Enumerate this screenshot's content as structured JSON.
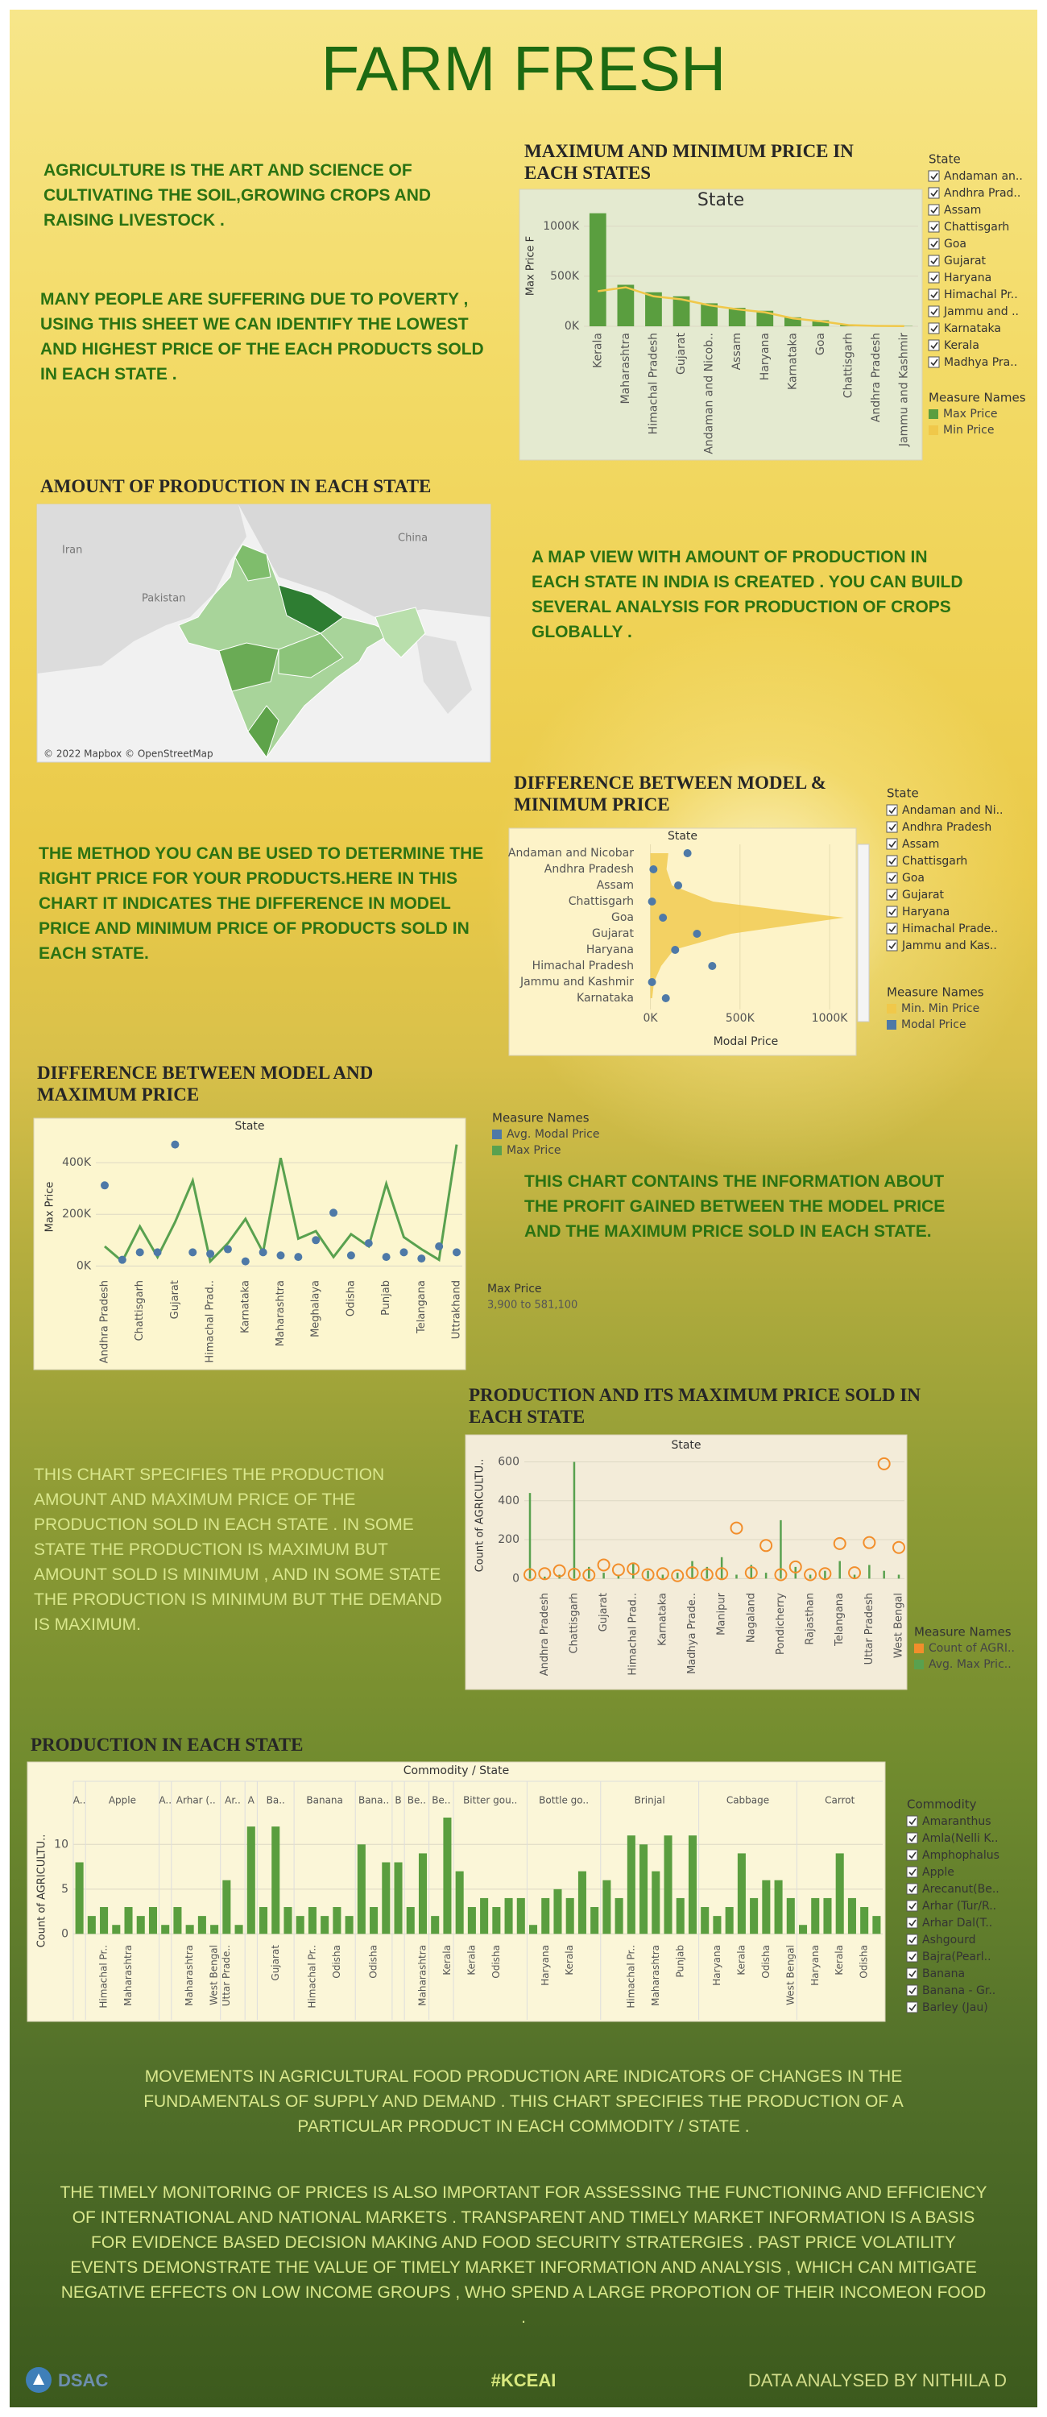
{
  "title": "FARM FRESH",
  "texts": [
    "AGRICULTURE IS THE ART AND SCIENCE OF CULTIVATING THE SOIL,GROWING CROPS AND RAISING LIVESTOCK .",
    "MANY PEOPLE ARE SUFFERING DUE TO POVERTY , USING THIS SHEET WE CAN IDENTIFY THE LOWEST AND HIGHEST PRICE OF THE EACH PRODUCTS SOLD IN EACH STATE  .",
    "A MAP VIEW WITH AMOUNT OF PRODUCTION IN EACH STATE IN INDIA IS CREATED . YOU CAN BUILD SEVERAL ANALYSIS FOR PRODUCTION OF CROPS GLOBALLY .",
    "THE METHOD YOU CAN BE USED TO DETERMINE THE RIGHT PRICE FOR YOUR PRODUCTS.HERE IN THIS CHART IT INDICATES THE DIFFERENCE IN MODEL PRICE AND MINIMUM PRICE OF PRODUCTS SOLD IN EACH STATE.",
    "THIS CHART CONTAINS THE INFORMATION ABOUT THE PROFIT GAINED BETWEEN THE MODEL PRICE AND THE MAXIMUM PRICE SOLD IN EACH STATE.",
    "THIS CHART SPECIFIES THE PRODUCTION AMOUNT AND MAXIMUM PRICE OF THE PRODUCTION SOLD IN EACH STATE . IN SOME STATE THE PRODUCTION IS MAXIMUM BUT AMOUNT SOLD IS MINIMUM , AND IN SOME STATE THE PRODUCTION IS MINIMUM BUT THE DEMAND IS MAXIMUM.",
    "MOVEMENTS IN AGRICULTURAL FOOD PRODUCTION ARE INDICATORS OF CHANGES IN THE FUNDAMENTALS OF SUPPLY AND DEMAND . THIS CHART SPECIFIES THE PRODUCTION OF A PARTICULAR PRODUCT IN EACH COMMODITY / STATE .",
    "THE TIMELY MONITORING OF PRICES IS ALSO IMPORTANT FOR ASSESSING THE FUNCTIONING AND EFFICIENCY OF INTERNATIONAL AND NATIONAL MARKETS . TRANSPARENT AND TIMELY MARKET INFORMATION IS A BASIS FOR EVIDENCE BASED DECISION MAKING AND FOOD SECURITY STRATERGIES . PAST PRICE VOLATILITY EVENTS DEMONSTRATE THE VALUE OF TIMELY MARKET INFORMATION AND ANALYSIS , WHICH CAN MITIGATE NEGATIVE EFFECTS ON LOW INCOME GROUPS , WHO SPEND A LARGE PROPOTION OF THEIR INCOMEON FOOD ."
  ],
  "footer": {
    "logo": "DSAC",
    "hashtag": "#KCEAI",
    "credit": "DATA ANALYSED BY NITHILA D"
  },
  "chart_data": [
    {
      "type": "bar-line",
      "title": "MAXIMUM AND MINIMUM PRICE IN EACH STATES",
      "header": "State",
      "y_label": "Max Price F",
      "categories": [
        "Kerala",
        "Maharashtra",
        "Himachal Pradesh",
        "Gujarat",
        "Andaman and Nicob..",
        "Assam",
        "Haryana",
        "Karnataka",
        "Goa",
        "Chattisgarh",
        "Andhra Pradesh",
        "Jammu and Kashmir"
      ],
      "series": [
        {
          "name": "Max Price",
          "color": "#5a9e3f",
          "mark": "bar",
          "values": [
            1130000,
            415000,
            340000,
            300000,
            230000,
            185000,
            155000,
            90000,
            60000,
            15000,
            5000,
            3000
          ]
        },
        {
          "name": "Min Price",
          "color": "#f0c84a",
          "mark": "line",
          "values": [
            350000,
            390000,
            300000,
            270000,
            210000,
            170000,
            140000,
            80000,
            50000,
            12000,
            4000,
            2000
          ]
        }
      ],
      "ylim": [
        0,
        1200000
      ],
      "yticks": [
        {
          "value": 0,
          "label": "0K"
        },
        {
          "value": 500000,
          "label": "500K"
        },
        {
          "value": 1000000,
          "label": "1000K"
        }
      ],
      "legend_title": "Measure Names",
      "filter": {
        "title": "State",
        "items": [
          "Andaman an..",
          "Andhra Prad..",
          "Assam",
          "Chattisgarh",
          "Goa",
          "Gujarat",
          "Haryana",
          "Himachal Pr..",
          "Jammu and ..",
          "Karnataka",
          "Kerala",
          "Madhya Pra.."
        ]
      }
    },
    {
      "type": "map",
      "title": "AMOUNT OF PRODUCTION IN EACH STATE",
      "labels": [
        "Iran",
        "Pakistan",
        "China"
      ],
      "attribution": "© 2022 Mapbox © OpenStreetMap"
    },
    {
      "type": "dot-area",
      "title": "DIFFERENCE BETWEEN MODEL & MINIMUM PRICE",
      "header": "State",
      "x_label": "Modal Price",
      "categories": [
        "Andaman and Nicobar",
        "Andhra Pradesh",
        "Assam",
        "Chattisgarh",
        "Goa",
        "Gujarat",
        "Haryana",
        "Himachal Pradesh",
        "Jammu and Kashmir",
        "Karnataka"
      ],
      "series": [
        {
          "name": "Min. Min Price",
          "color": "#f0c84a",
          "mark": "area",
          "values": [
            100000,
            90000,
            120000,
            350000,
            1080000,
            450000,
            130000,
            60000,
            20000,
            10000
          ]
        },
        {
          "name": "Modal Price",
          "color": "#4e79a7",
          "mark": "dot",
          "values": [
            207000,
            17000,
            155000,
            9000,
            70000,
            260000,
            138000,
            345000,
            9000,
            86000
          ]
        }
      ],
      "xlim": [
        -70000,
        1130000
      ],
      "xticks": [
        {
          "value": 0,
          "label": "0K"
        },
        {
          "value": 500000,
          "label": "500K"
        },
        {
          "value": 1000000,
          "label": "1000K"
        }
      ],
      "legend_title": "Measure Names",
      "filter": {
        "title": "State",
        "items": [
          "Andaman and Ni..",
          "Andhra Pradesh",
          "Assam",
          "Chattisgarh",
          "Goa",
          "Gujarat",
          "Haryana",
          "Himachal Prade..",
          "Jammu and Kas.."
        ]
      }
    },
    {
      "type": "dot-line",
      "title": "DIFFERENCE BETWEEN MODEL AND MAXIMUM PRICE",
      "header": "State",
      "y_label": "Max Price",
      "categories": [
        "Andhra Pradesh",
        null,
        "Chattisgarh",
        null,
        "Gujarat",
        null,
        "Himachal Prad..",
        null,
        "Karnataka",
        null,
        "Maharashtra",
        null,
        "Meghalaya",
        null,
        "Odisha",
        null,
        "Punjab",
        null,
        "Telangana",
        null,
        "Uttrakhand"
      ],
      "series": [
        {
          "name": "Avg. Modal Price",
          "color": "#4e79a7",
          "mark": "dot",
          "values": [
            312000,
            24000,
            53000,
            53000,
            470000,
            53000,
            47000,
            65000,
            18000,
            53000,
            41000,
            35000,
            100000,
            206000,
            41000,
            88000,
            35000,
            53000,
            29000,
            76000,
            53000
          ]
        },
        {
          "name": "Max Price",
          "color": "#59a14f",
          "mark": "line",
          "values": [
            76000,
            18000,
            153000,
            35000,
            170000,
            330000,
            18000,
            88000,
            182000,
            53000,
            418000,
            106000,
            135000,
            35000,
            123000,
            76000,
            318000,
            112000,
            65000,
            24000,
            470000
          ]
        }
      ],
      "ylim": [
        -30000,
        500000
      ],
      "yticks": [
        {
          "value": 0,
          "label": "0K"
        },
        {
          "value": 200000,
          "label": "200K"
        },
        {
          "value": 400000,
          "label": "400K"
        }
      ],
      "legend_title": "Measure Names",
      "size_legend": {
        "title": "Max Price",
        "range": "3,900 to 581,100"
      }
    },
    {
      "type": "lollipop",
      "title": "PRODUCTION AND ITS MAXIMUM PRICE SOLD IN EACH STATE",
      "header": "State",
      "y_label": "Count of AGRICULTU..",
      "categories": [
        null,
        "Andhra Pradesh",
        null,
        "Chattisgarh",
        null,
        "Gujarat",
        null,
        "Himachal Prad..",
        null,
        "Karnataka",
        null,
        "Madhya Prade..",
        null,
        "Manipur",
        null,
        "Nagaland",
        null,
        "Pondicherry",
        null,
        "Rajasthan",
        null,
        "Telangana",
        null,
        "Uttar Pradesh",
        null,
        "West Bengal"
      ],
      "series": [
        {
          "name": "Count of AGRI..",
          "color": "#f28e2b",
          "mark": "circle",
          "values": [
            20,
            25,
            40,
            22,
            18,
            70,
            45,
            50,
            20,
            25,
            15,
            30,
            20,
            25,
            260,
            30,
            170,
            20,
            60,
            20,
            25,
            180,
            30,
            185,
            590,
            160
          ]
        },
        {
          "name": "Avg. Max Pric..",
          "color": "#59a14f",
          "mark": "stem",
          "values": [
            440,
            10,
            20,
            600,
            60,
            30,
            15,
            80,
            40,
            20,
            30,
            90,
            60,
            110,
            20,
            70,
            30,
            300,
            60,
            20,
            40,
            90,
            20,
            70,
            40,
            20
          ]
        }
      ],
      "ylim": [
        -40,
        660
      ],
      "yticks": [
        0,
        200,
        400,
        600
      ],
      "legend_title": "Measure Names"
    },
    {
      "type": "grouped-bar",
      "title": "PRODUCTION IN EACH STATE",
      "header": "Commodity / State",
      "y_label": "Count of AGRICULTU..",
      "color": "#5a9e3f",
      "groups": [
        {
          "name": "A..",
          "values": [
            8
          ],
          "labels": [
            null
          ]
        },
        {
          "name": "Apple",
          "values": [
            2,
            3,
            1,
            3,
            2,
            3
          ],
          "labels": [
            null,
            "Himachal Pr..",
            null,
            "Maharashtra",
            null,
            null
          ]
        },
        {
          "name": "A..",
          "values": [
            1
          ],
          "labels": [
            null
          ]
        },
        {
          "name": "Arhar (..",
          "values": [
            3,
            1,
            2,
            1
          ],
          "labels": [
            null,
            "Maharashtra",
            null,
            "West Bengal"
          ]
        },
        {
          "name": "Ar..",
          "values": [
            6,
            1
          ],
          "labels": [
            "Uttar Prade..",
            null
          ]
        },
        {
          "name": "A",
          "values": [
            12
          ],
          "labels": [
            null
          ]
        },
        {
          "name": "Ba..",
          "values": [
            3,
            12,
            3
          ],
          "labels": [
            null,
            "Gujarat",
            null
          ]
        },
        {
          "name": "Banana",
          "values": [
            2,
            3,
            2,
            3,
            2
          ],
          "labels": [
            null,
            "Himachal Pr..",
            null,
            "Odisha",
            null
          ]
        },
        {
          "name": "Bana..",
          "values": [
            10,
            3,
            8
          ],
          "labels": [
            null,
            "Odisha",
            null
          ]
        },
        {
          "name": "B",
          "values": [
            8
          ],
          "labels": [
            null
          ]
        },
        {
          "name": "Be..",
          "values": [
            3,
            9
          ],
          "labels": [
            null,
            "Maharashtra"
          ]
        },
        {
          "name": "Be..",
          "values": [
            2,
            13
          ],
          "labels": [
            null,
            "Kerala"
          ]
        },
        {
          "name": "Bitter gou..",
          "values": [
            7,
            3,
            4,
            3,
            4,
            4
          ],
          "labels": [
            null,
            "Kerala",
            null,
            "Odisha",
            null,
            null
          ]
        },
        {
          "name": "Bottle go..",
          "values": [
            1,
            4,
            5,
            4,
            7,
            3
          ],
          "labels": [
            null,
            "Haryana",
            null,
            "Kerala",
            null,
            null
          ]
        },
        {
          "name": "Brinjal",
          "values": [
            6,
            4,
            11,
            10,
            7,
            11,
            4,
            11
          ],
          "labels": [
            null,
            null,
            "Himachal Pr..",
            null,
            "Maharashtra",
            null,
            "Punjab",
            null
          ]
        },
        {
          "name": "Cabbage",
          "values": [
            3,
            2,
            3,
            9,
            4,
            6,
            6,
            4
          ],
          "labels": [
            null,
            "Haryana",
            null,
            "Kerala",
            null,
            "Odisha",
            null,
            "West Bengal"
          ]
        },
        {
          "name": "Carrot",
          "values": [
            1,
            4,
            4,
            9,
            4,
            3,
            2
          ],
          "labels": [
            null,
            "Haryana",
            null,
            "Kerala",
            null,
            "Odisha",
            null
          ]
        }
      ],
      "ylim": [
        -0.6,
        13
      ],
      "yticks": [
        0,
        5,
        10
      ],
      "filter": {
        "title": "Commodity",
        "items": [
          "Amaranthus",
          "Amla(Nelli K..",
          "Amphophalus",
          "Apple",
          "Arecanut(Be..",
          "Arhar (Tur/R..",
          "Arhar Dal(T..",
          "Ashgourd",
          "Bajra(Pearl..",
          "Banana",
          "Banana - Gr..",
          "Barley (Jau)"
        ]
      }
    }
  ]
}
